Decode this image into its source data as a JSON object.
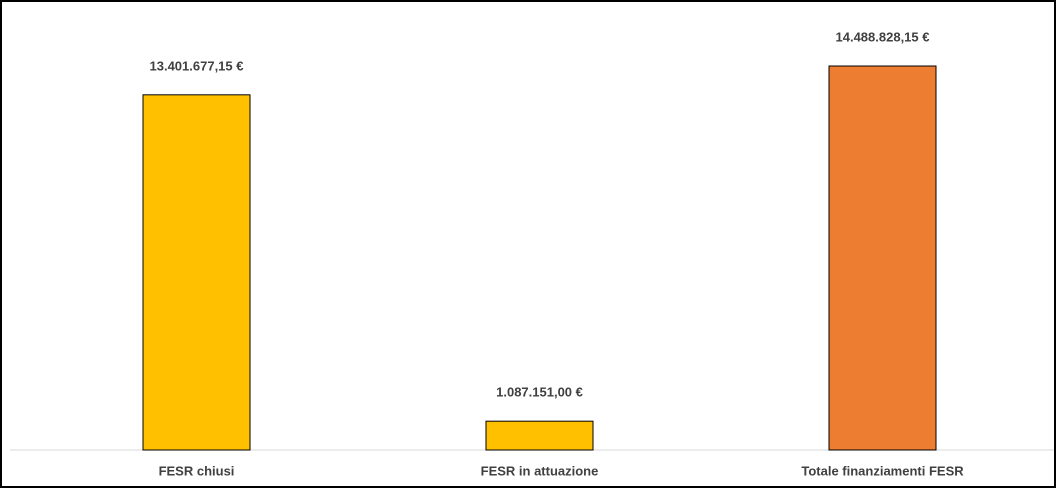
{
  "chart_data": {
    "type": "bar",
    "categories": [
      "FESR chiusi",
      "FESR in attuazione",
      "Totale finanziamenti FESR"
    ],
    "values": [
      13401677.15,
      1087151.0,
      14488828.15
    ],
    "value_labels": [
      "13.401.677,15 €",
      "1.087.151,00 €",
      "14.488.828,15 €"
    ],
    "colors": [
      "#ffc000",
      "#ffc000",
      "#ed7d31"
    ]
  }
}
